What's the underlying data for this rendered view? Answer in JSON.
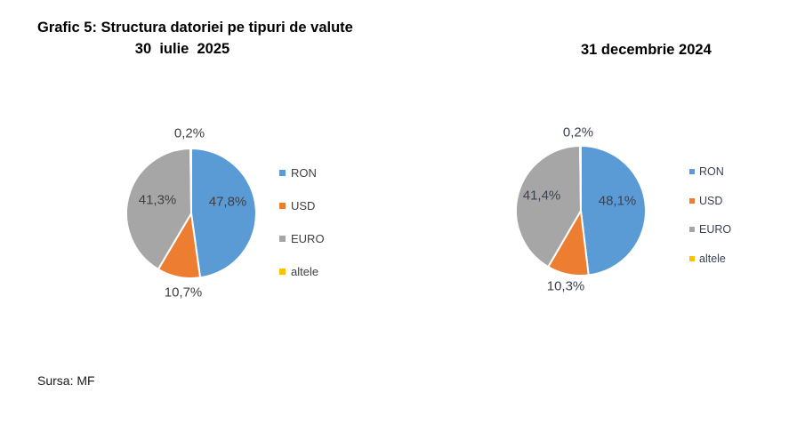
{
  "header": {
    "title_line1": "Grafic 5: Structura datoriei pe tipuri de valute",
    "title_line2": "30  iulie  2025",
    "right_title": "31 decembrie 2024"
  },
  "footer": {
    "source": "Sursa: MF"
  },
  "palette": {
    "ron_blue": "#5B9BD5",
    "usd_orange": "#ED7D31",
    "euro_gray": "#A6A6A6",
    "altele_yellow": "#FFC000",
    "label_text": "#404040",
    "title_text": "#000000",
    "slice_border": "#FFFFFF"
  },
  "chart_data": [
    {
      "type": "pie",
      "title": "30 iulie 2025",
      "categories": [
        "RON",
        "USD",
        "EURO",
        "altele"
      ],
      "values": [
        47.8,
        10.7,
        41.3,
        0.2
      ],
      "display": [
        "47,8%",
        "10,7%",
        "41,3%",
        "0,2%"
      ],
      "colors": [
        "#5B9BD5",
        "#ED7D31",
        "#A6A6A6",
        "#FFC000"
      ],
      "legend_position": "right",
      "start_angle": "12-oclock",
      "direction": "clockwise"
    },
    {
      "type": "pie",
      "title": "31 decembrie 2024",
      "categories": [
        "RON",
        "USD",
        "EURO",
        "altele"
      ],
      "values": [
        48.1,
        10.3,
        41.4,
        0.2
      ],
      "display": [
        "48,1%",
        "10,3%",
        "41,4%",
        "0,2%"
      ],
      "colors": [
        "#5B9BD5",
        "#ED7D31",
        "#A6A6A6",
        "#FFC000"
      ],
      "legend_position": "right",
      "start_angle": "12-oclock",
      "direction": "clockwise"
    }
  ]
}
